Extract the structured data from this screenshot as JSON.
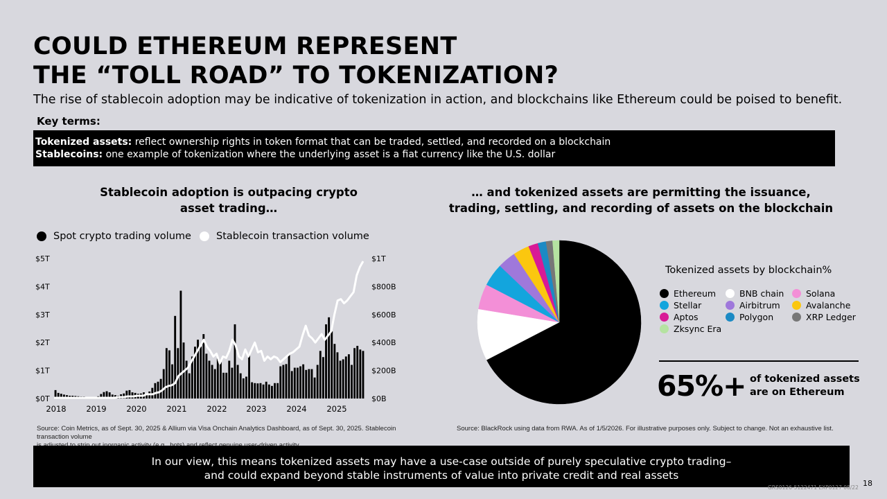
{
  "header": {
    "title_line1": "COULD ETHEREUM REPRESENT",
    "title_line2": "THE “TOLL ROAD” TO TOKENIZATION?",
    "subtitle": "The rise of stablecoin adoption may be indicative of tokenization in action, and blockchains like Ethereum could be poised to benefit."
  },
  "key_terms": {
    "label": "Key terms:",
    "term1_name": "Tokenized assets:",
    "term1_def": " reflect ownership rights in token format that can be traded, settled, and recorded on a blockchain",
    "term2_name": "Stablecoins:",
    "term2_def": " one example of tokenization where the underlying asset is a fiat currency like the U.S. dollar"
  },
  "left_panel": {
    "title_line1": "Stablecoin adoption is outpacing crypto",
    "title_line2": "asset trading…",
    "source_line1": "Source: Coin Metrics, as of Sept. 30, 2025 & Allium via Visa Onchain Analytics Dashboard, as of Sept. 30, 2025. Stablecoin transaction volume",
    "source_line2": "is adjusted to strip out inorganic activity (e.g., bots) and reflect genuine user-driven activity."
  },
  "right_panel": {
    "title_line1": "… and  tokenized assets are permitting the issuance,",
    "title_line2": "trading, settling, and recording of assets on the blockchain",
    "legend_title": "Tokenized assets by blockchain%",
    "stat_value": "65%+",
    "stat_line1": "of tokenized assets",
    "stat_line2": "are on Ethereum",
    "source": "Source: BlackRock using data from RWA. As of 1/5/2026. For illustrative purposes only. Subject to change. Not an exhaustive list."
  },
  "bottom": {
    "line1": "In our view, this means tokenized assets may have a use-case outside of purely speculative crypto trading–",
    "line2": "and could expand beyond stable instruments of value into private credit and real assets"
  },
  "page_number": "18",
  "footer_code": "GRS0126-5122471 EXP0127 08/22",
  "colors": {
    "background": "#d8d8de",
    "spot_bar": "#000000",
    "stablecoin_line": "#ffffff"
  },
  "chart_data": [
    {
      "type": "bar",
      "legend": [
        {
          "label": "Spot crypto trading volume",
          "color": "#000000"
        },
        {
          "label": "Stablecoin transaction volume",
          "color": "#ffffff"
        }
      ],
      "x_tick_labels": [
        "2018",
        "2019",
        "2020",
        "2021",
        "2022",
        "2023",
        "2024",
        "2025"
      ],
      "left_axis": {
        "ticks": [
          "$0T",
          "$1T",
          "$2T",
          "$3T",
          "$4T",
          "$5T"
        ],
        "ylim": [
          0,
          5
        ]
      },
      "right_axis": {
        "ticks": [
          "$0B",
          "$200B",
          "$400B",
          "$600B",
          "$800B",
          "$1T"
        ],
        "ylim": [
          0,
          1000
        ]
      },
      "x_start": "2018-01",
      "series": [
        {
          "name": "Spot crypto trading volume",
          "axis": "left",
          "unit": "T",
          "values": [
            0.3,
            0.2,
            0.17,
            0.14,
            0.12,
            0.1,
            0.1,
            0.09,
            0.08,
            0.07,
            0.07,
            0.06,
            0.05,
            0.05,
            0.06,
            0.08,
            0.16,
            0.23,
            0.26,
            0.22,
            0.14,
            0.12,
            0.1,
            0.15,
            0.18,
            0.28,
            0.3,
            0.22,
            0.2,
            0.17,
            0.18,
            0.22,
            0.18,
            0.25,
            0.38,
            0.55,
            0.6,
            0.7,
            1.05,
            1.8,
            1.72,
            1.22,
            2.95,
            1.8,
            3.85,
            2.0,
            1.35,
            0.9,
            1.5,
            1.85,
            2.1,
            1.85,
            2.3,
            1.6,
            1.35,
            1.2,
            1.05,
            1.45,
            1.3,
            0.92,
            0.92,
            1.35,
            1.1,
            2.65,
            1.2,
            0.9,
            0.72,
            0.78,
            1.6,
            0.58,
            0.55,
            0.54,
            0.55,
            0.5,
            0.6,
            0.5,
            0.45,
            0.55,
            0.55,
            1.15,
            1.2,
            1.23,
            1.58,
            0.98,
            1.1,
            1.1,
            1.15,
            1.22,
            1.02,
            1.05,
            1.05,
            0.75,
            1.2,
            1.7,
            1.48,
            2.65,
            2.9,
            2.4,
            1.95,
            1.65,
            1.35,
            1.4,
            1.5,
            1.58,
            1.2,
            1.8,
            1.88,
            1.75,
            1.7
          ]
        },
        {
          "name": "Stablecoin transaction volume",
          "axis": "right",
          "unit": "B",
          "values": [
            5,
            5,
            5,
            5,
            5,
            5,
            5,
            5,
            5,
            5,
            5,
            5,
            5,
            5,
            5,
            5,
            5,
            5,
            5,
            5,
            10,
            10,
            10,
            15,
            15,
            15,
            20,
            20,
            20,
            30,
            30,
            30,
            40,
            45,
            60,
            80,
            90,
            95,
            110,
            160,
            180,
            200,
            220,
            260,
            300,
            340,
            380,
            420,
            370,
            340,
            300,
            320,
            250,
            300,
            290,
            340,
            420,
            380,
            300,
            280,
            350,
            300,
            350,
            400,
            330,
            340,
            270,
            300,
            280,
            300,
            290,
            260,
            280,
            300,
            320,
            330,
            350,
            370,
            450,
            520,
            450,
            430,
            400,
            430,
            460,
            420,
            450,
            480,
            600,
            700,
            710,
            680,
            700,
            730,
            760,
            880,
            940,
            980
          ]
        }
      ]
    },
    {
      "type": "pie",
      "title": "Tokenized assets by blockchain%",
      "categories": [
        "Ethereum",
        "BNB chain",
        "Solana",
        "Stellar",
        "Airbitrum",
        "Avalanche",
        "Aptos",
        "Polygon",
        "XRP Ledger",
        "Zksync Era"
      ],
      "values": [
        67.4,
        10.2,
        5.0,
        4.5,
        3.6,
        3.2,
        1.9,
        1.6,
        1.3,
        1.3
      ],
      "colors": [
        "#000000",
        "#ffffff",
        "#f38fd7",
        "#13a5dd",
        "#9f78db",
        "#fbc70f",
        "#d81a96",
        "#1c8ac4",
        "#777777",
        "#b5e3a1"
      ]
    }
  ]
}
